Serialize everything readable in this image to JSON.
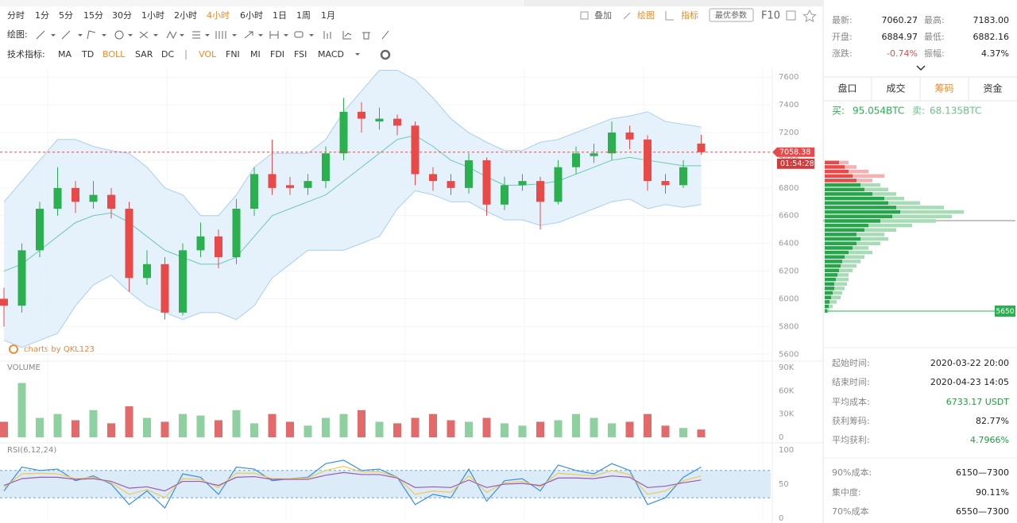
{
  "toolbar": {
    "intervals": [
      "分时",
      "1分",
      "5分",
      "15分",
      "30分",
      "1小时",
      "2小时",
      "4小时",
      "6小时",
      "1日",
      "1周",
      "1月"
    ],
    "active_interval": "4小时",
    "tools": [
      "叠加",
      "绘图",
      "指标"
    ],
    "active_tools": [
      "绘图",
      "指标"
    ],
    "button": "最优参数",
    "f10": "F10",
    "draw_label": "绘图:",
    "indicator_label": "技术指标:",
    "indicators": [
      "MA",
      "TD",
      "BOLL",
      "SAR",
      "DC",
      "VOL",
      "FNI",
      "MI",
      "FDI",
      "FSI",
      "MACD"
    ],
    "active_indicators": [
      "BOLL",
      "VOL"
    ]
  },
  "price_chart": {
    "ylim": [
      5550,
      7670
    ],
    "yticks": [
      5600,
      5800,
      6000,
      6200,
      6400,
      6600,
      6800,
      7000,
      7200,
      7400,
      7600
    ],
    "last_price": 7058.38,
    "countdown": "01:54:28",
    "watermark": "charts by QKL123",
    "open": [
      6000,
      5950,
      6350,
      6650,
      6800,
      6700,
      6750,
      6650,
      6150,
      6250,
      5900,
      6350,
      6450,
      6300,
      6650,
      6900,
      6820,
      6800,
      6850,
      7050,
      7350,
      7280,
      7300,
      7250,
      6900,
      6850,
      6800,
      7000,
      6680,
      6820,
      6850,
      6700,
      6950,
      7030,
      7050,
      7200,
      7150,
      6850,
      6820,
      7120
    ],
    "high": [
      6080,
      6400,
      6700,
      6950,
      6850,
      6850,
      6800,
      6700,
      6350,
      6300,
      6400,
      6550,
      6500,
      6720,
      6950,
      7150,
      6880,
      6900,
      7100,
      7450,
      7420,
      7380,
      7330,
      7280,
      6950,
      6900,
      7050,
      7020,
      6880,
      6900,
      6880,
      7000,
      7100,
      7120,
      7280,
      7250,
      7180,
      6900,
      7000,
      7183
    ],
    "low": [
      5800,
      5900,
      6300,
      6600,
      6620,
      6650,
      6580,
      6050,
      6100,
      5850,
      5880,
      6300,
      6220,
      6250,
      6600,
      6750,
      6750,
      6750,
      6800,
      7000,
      7200,
      7220,
      7180,
      6820,
      6780,
      6750,
      6760,
      6600,
      6640,
      6780,
      6500,
      6680,
      6900,
      6980,
      7000,
      7080,
      6780,
      6760,
      6800,
      7040
    ],
    "close": [
      5950,
      6350,
      6650,
      6800,
      6700,
      6750,
      6650,
      6150,
      6250,
      5900,
      6350,
      6450,
      6300,
      6650,
      6900,
      6800,
      6800,
      6850,
      7050,
      7350,
      7300,
      7300,
      7250,
      6900,
      6850,
      6800,
      7000,
      6680,
      6820,
      6850,
      6700,
      6950,
      7050,
      7050,
      7200,
      7150,
      6850,
      6820,
      6950,
      7058.38
    ],
    "boll_upper": [
      6700,
      6850,
      7000,
      7150,
      7150,
      7100,
      7070,
      7050,
      6950,
      6800,
      6750,
      6600,
      6600,
      6750,
      6950,
      7050,
      7050,
      7050,
      7150,
      7350,
      7500,
      7650,
      7650,
      7580,
      7450,
      7300,
      7200,
      7130,
      7070,
      7070,
      7130,
      7150,
      7200,
      7250,
      7300,
      7320,
      7350,
      7280,
      7260,
      7240
    ],
    "boll_mid": [
      6200,
      6250,
      6350,
      6450,
      6550,
      6600,
      6620,
      6550,
      6450,
      6350,
      6300,
      6250,
      6250,
      6300,
      6450,
      6600,
      6650,
      6700,
      6750,
      6850,
      6950,
      7050,
      7150,
      7180,
      7100,
      7000,
      6950,
      6880,
      6820,
      6820,
      6830,
      6850,
      6900,
      6950,
      7000,
      7020,
      7000,
      6980,
      6960,
      6960
    ],
    "boll_lower": [
      5700,
      5650,
      5700,
      5750,
      5950,
      6100,
      6170,
      6050,
      5950,
      5900,
      5850,
      5900,
      5900,
      5850,
      5950,
      6150,
      6250,
      6350,
      6350,
      6350,
      6400,
      6450,
      6650,
      6780,
      6750,
      6700,
      6700,
      6630,
      6570,
      6570,
      6530,
      6550,
      6600,
      6650,
      6700,
      6720,
      6650,
      6680,
      6660,
      6680
    ]
  },
  "volume_chart": {
    "title": "VOLUME",
    "ylim": [
      0,
      90000
    ],
    "yticks": [
      {
        "value": 0,
        "label": "0"
      },
      {
        "value": 30000,
        "label": "30K"
      },
      {
        "value": 60000,
        "label": "60K"
      },
      {
        "value": 90000,
        "label": "90K"
      }
    ],
    "values": [
      20000,
      70000,
      25000,
      30000,
      22000,
      35000,
      18000,
      40000,
      25000,
      20000,
      30000,
      28000,
      22000,
      35000,
      18000,
      30000,
      20000,
      15000,
      25000,
      30000,
      35000,
      20000,
      18000,
      25000,
      30000,
      22000,
      20000,
      25000,
      18000,
      15000,
      20000,
      22000,
      30000,
      25000,
      18000,
      20000,
      30000,
      15000,
      12000,
      10000
    ]
  },
  "rsi_chart": {
    "title": "RSI(6,12,24)",
    "ylim": [
      0,
      100
    ],
    "yticks": [
      0,
      50,
      100
    ],
    "band": [
      30,
      70
    ],
    "series": [
      {
        "color": "#3a8ee6",
        "values": [
          40,
          75,
          70,
          72,
          55,
          62,
          50,
          20,
          40,
          15,
          65,
          60,
          35,
          75,
          72,
          55,
          58,
          60,
          80,
          85,
          70,
          72,
          60,
          20,
          35,
          30,
          72,
          25,
          55,
          58,
          40,
          78,
          70,
          65,
          80,
          70,
          20,
          30,
          60,
          75
        ]
      },
      {
        "color": "#f2c94c",
        "values": [
          45,
          65,
          66,
          65,
          58,
          60,
          52,
          35,
          42,
          30,
          58,
          57,
          45,
          66,
          66,
          58,
          58,
          59,
          70,
          76,
          68,
          68,
          60,
          35,
          40,
          38,
          62,
          38,
          52,
          54,
          46,
          66,
          64,
          62,
          70,
          64,
          35,
          40,
          55,
          62
        ]
      },
      {
        "color": "#9b59b6",
        "values": [
          48,
          58,
          60,
          60,
          57,
          58,
          54,
          44,
          46,
          40,
          54,
          54,
          48,
          60,
          61,
          57,
          57,
          57,
          63,
          67,
          64,
          64,
          59,
          45,
          46,
          45,
          56,
          45,
          50,
          51,
          48,
          59,
          59,
          58,
          62,
          60,
          45,
          47,
          52,
          56
        ]
      }
    ]
  },
  "quote": {
    "rows": [
      [
        {
          "label": "最新:",
          "value": "7060.27"
        },
        {
          "label": "最高:",
          "value": "7183.00"
        }
      ],
      [
        {
          "label": "开盘:",
          "value": "6884.97"
        },
        {
          "label": "最低:",
          "value": "6882.16"
        }
      ],
      [
        {
          "label": "涨跌:",
          "value": "-0.74%"
        },
        {
          "label": "振幅:",
          "value": "4.37%"
        }
      ]
    ]
  },
  "tabs": {
    "items": [
      "盘口",
      "成交",
      "筹码",
      "资金"
    ],
    "active": "筹码"
  },
  "chip": {
    "buy_label": "买:",
    "buy": "95.054BTC",
    "sell_label": "卖:",
    "sell": "68.135BTC",
    "ylim": [
      5650,
      7300
    ],
    "prices": [
      5650,
      5700,
      5750,
      5800,
      5850,
      5900,
      5950,
      6000,
      6050,
      6100,
      6150,
      6200,
      6250,
      6300,
      6350,
      6400,
      6450,
      6500,
      6550,
      6600,
      6650,
      6700,
      6750,
      6800,
      6850,
      6900,
      6950,
      7000,
      7050,
      7100,
      7150,
      7200,
      7250,
      7300
    ],
    "dark": [
      3,
      5,
      6,
      8,
      10,
      12,
      12,
      14,
      16,
      18,
      20,
      22,
      25,
      30,
      35,
      40,
      45,
      40,
      50,
      55,
      70,
      85,
      95,
      90,
      80,
      75,
      60,
      50,
      45,
      40,
      35,
      30,
      25,
      18
    ],
    "light": [
      5,
      10,
      15,
      20,
      22,
      25,
      28,
      30,
      30,
      35,
      40,
      45,
      50,
      60,
      55,
      70,
      80,
      75,
      90,
      110,
      140,
      160,
      175,
      150,
      120,
      100,
      90,
      80,
      70,
      60,
      75,
      55,
      40,
      30
    ],
    "stats": [
      {
        "label": "起始时间:",
        "value": "2020-03-22 20:00"
      },
      {
        "label": "结束时间:",
        "value": "2020-04-23 14:05"
      },
      {
        "label": "平均成本:",
        "value": "6733.17 USDT"
      },
      {
        "label": "获利筹码:",
        "value": "82.77%"
      },
      {
        "label": "平均获利:",
        "value": "4.7966%"
      },
      {
        "label": "90%成本:",
        "value": "6150—7300"
      },
      {
        "label": "集中度:",
        "value": "90.11%"
      },
      {
        "label": "70%成本",
        "value": "6550—7300"
      }
    ]
  }
}
